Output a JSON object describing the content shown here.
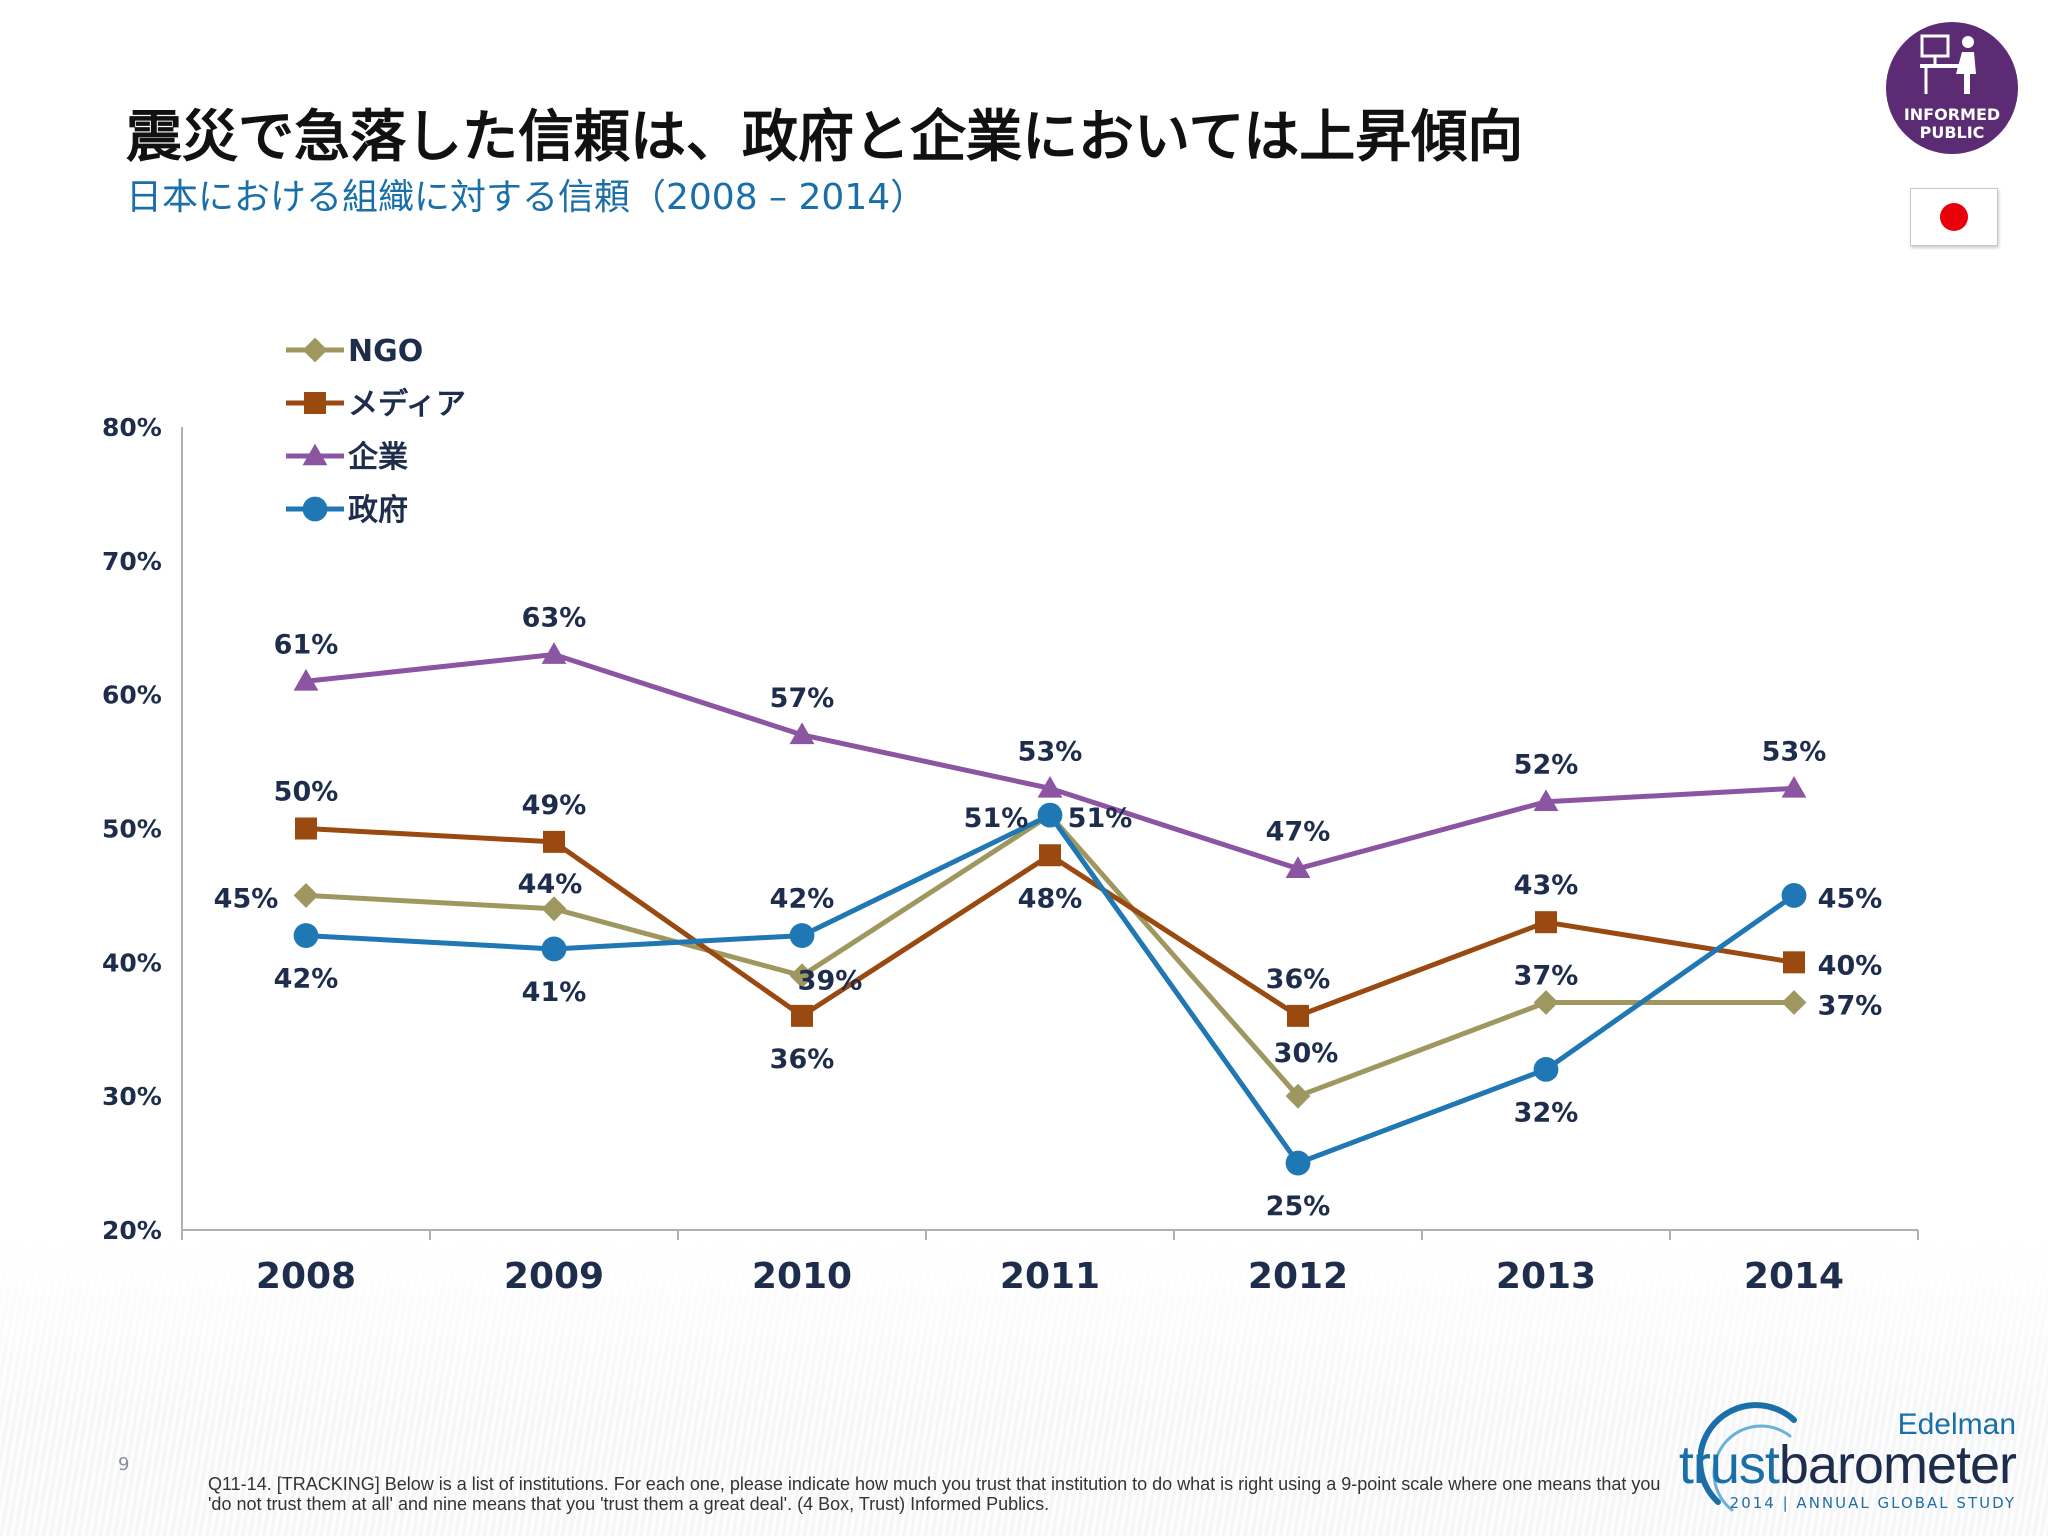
{
  "header": {
    "title": "震災で急落した信頼は、政府と企業においては上昇傾向",
    "subtitle": "日本における組織に対する信頼（2008 – 2014）"
  },
  "badge": {
    "line1": "INFORMED",
    "line2": "PUBLIC",
    "icon": "person-at-desk-icon",
    "color": "#5b2b74"
  },
  "flag": {
    "icon": "japan-flag-icon"
  },
  "chart_data": {
    "type": "line",
    "title": "",
    "xlabel": "",
    "ylabel": "",
    "x": [
      "2008",
      "2009",
      "2010",
      "2011",
      "2012",
      "2013",
      "2014"
    ],
    "ylim": [
      20,
      80
    ],
    "yticks": [
      "20%",
      "30%",
      "40%",
      "50%",
      "60%",
      "70%",
      "80%"
    ],
    "legend_position": "top-left",
    "grid": false,
    "series": [
      {
        "name": "NGO",
        "marker": "diamond",
        "color": "#9e9860",
        "values": [
          45,
          44,
          39,
          51,
          30,
          37,
          37
        ],
        "labels": [
          "45%",
          "44%",
          "39%",
          "51%",
          "30%",
          "37%",
          "37%"
        ]
      },
      {
        "name": "メディア",
        "marker": "square",
        "color": "#9a4a10",
        "values": [
          50,
          49,
          36,
          48,
          36,
          43,
          40
        ],
        "labels": [
          "50%",
          "49%",
          "36%",
          "48%",
          "36%",
          "43%",
          "40%"
        ]
      },
      {
        "name": "企業",
        "marker": "triangle",
        "color": "#8b55a2",
        "values": [
          61,
          63,
          57,
          53,
          47,
          52,
          53
        ],
        "labels": [
          "61%",
          "63%",
          "57%",
          "53%",
          "47%",
          "52%",
          "53%"
        ]
      },
      {
        "name": "政府",
        "marker": "circle",
        "color": "#1f77b4",
        "values": [
          42,
          41,
          42,
          51,
          25,
          32,
          45
        ],
        "labels": [
          "42%",
          "41%",
          "42%",
          "51%",
          "25%",
          "32%",
          "45%"
        ]
      }
    ]
  },
  "footer": {
    "page_number": "9",
    "footnote": "Q11-14. [TRACKING] Below is a list of institutions. For each one, please indicate how much you trust that institution to do what is right using a 9-point scale where one means that you 'do not trust them at all' and nine means that you 'trust them a great deal'. (4 Box, Trust) Informed Publics."
  },
  "brand": {
    "company": "Edelman",
    "product_a": "trust",
    "product_b": "barometer",
    "study": "2014 | ANNUAL GLOBAL STUDY"
  }
}
